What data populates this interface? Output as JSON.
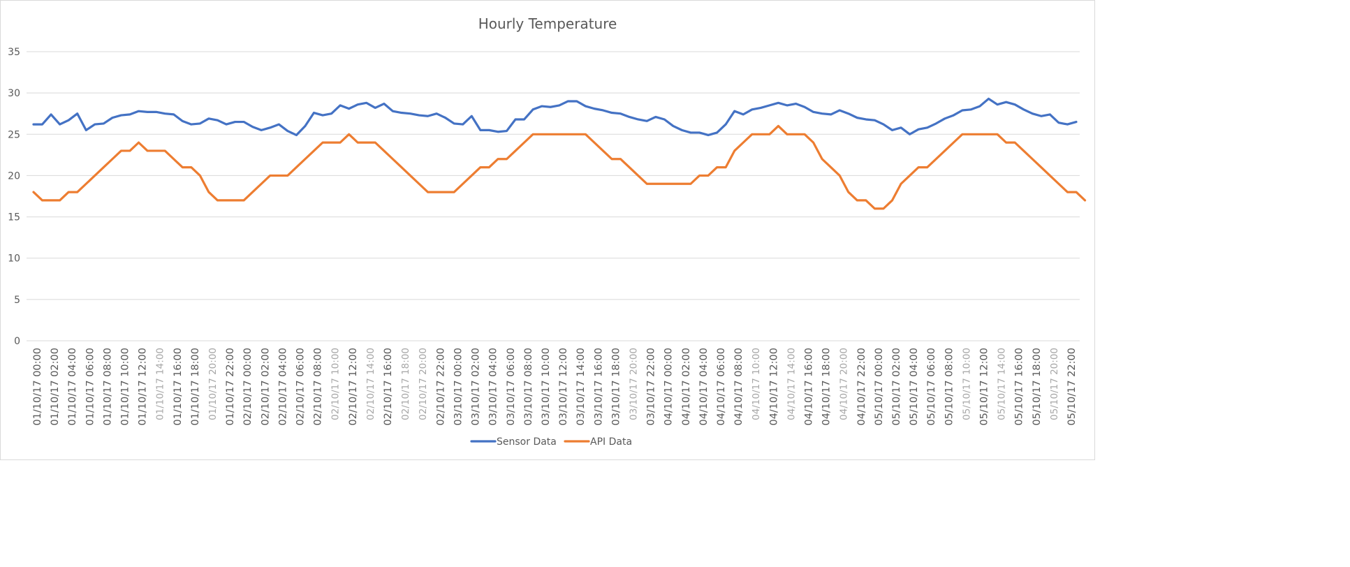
{
  "colors": {
    "sensor": "#4472c4",
    "api": "#ed7d31",
    "grid": "#d9d9d9",
    "text": "#595959"
  },
  "chart_data": {
    "type": "line",
    "title": "Hourly Temperature",
    "xlabel": "",
    "ylabel": "",
    "ylim": [
      0,
      35
    ],
    "yticks": [
      0,
      5,
      10,
      15,
      20,
      25,
      30,
      35
    ],
    "grid": true,
    "legend_position": "bottom",
    "x_tick_labels": [
      "01/10/17 00:00",
      "01/10/17 02:00",
      "01/10/17 04:00",
      "01/10/17 06:00",
      "01/10/17 08:00",
      "01/10/17 10:00",
      "01/10/17 12:00",
      "01/10/17 14:00",
      "01/10/17 16:00",
      "01/10/17 18:00",
      "01/10/17 20:00",
      "01/10/17 22:00",
      "02/10/17 00:00",
      "02/10/17 02:00",
      "02/10/17 04:00",
      "02/10/17 06:00",
      "02/10/17 08:00",
      "02/10/17 10:00",
      "02/10/17 12:00",
      "02/10/17 14:00",
      "02/10/17 16:00",
      "02/10/17 18:00",
      "02/10/17 20:00",
      "02/10/17 22:00",
      "03/10/17 00:00",
      "03/10/17 02:00",
      "03/10/17 04:00",
      "03/10/17 06:00",
      "03/10/17 08:00",
      "03/10/17 10:00",
      "03/10/17 12:00",
      "03/10/17 14:00",
      "03/10/17 16:00",
      "03/10/17 18:00",
      "03/10/17 20:00",
      "03/10/17 22:00",
      "04/10/17 00:00",
      "04/10/17 02:00",
      "04/10/17 04:00",
      "04/10/17 06:00",
      "04/10/17 08:00",
      "04/10/17 10:00",
      "04/10/17 12:00",
      "04/10/17 14:00",
      "04/10/17 16:00",
      "04/10/17 18:00",
      "04/10/17 20:00",
      "04/10/17 22:00",
      "05/10/17 00:00",
      "05/10/17 02:00",
      "05/10/17 04:00",
      "05/10/17 06:00",
      "05/10/17 08:00",
      "05/10/17 10:00",
      "05/10/17 12:00",
      "05/10/17 14:00",
      "05/10/17 16:00",
      "05/10/17 18:00",
      "05/10/17 20:00",
      "05/10/17 22:00"
    ],
    "x_tick_light": [
      7,
      10,
      17,
      19,
      21,
      22,
      34,
      41,
      43,
      46,
      53,
      55,
      58
    ],
    "series": [
      {
        "name": "Sensor Data",
        "color": "#4472c4",
        "values": [
          26.2,
          26.2,
          27.4,
          26.2,
          26.7,
          27.5,
          25.5,
          26.2,
          26.3,
          27.0,
          27.3,
          27.4,
          27.8,
          27.7,
          27.7,
          27.5,
          27.4,
          26.6,
          26.2,
          26.3,
          26.9,
          26.7,
          26.2,
          26.5,
          26.5,
          25.9,
          25.5,
          25.8,
          26.2,
          25.4,
          24.9,
          26.0,
          27.6,
          27.3,
          27.5,
          28.5,
          28.1,
          28.6,
          28.8,
          28.2,
          28.7,
          27.8,
          27.6,
          27.5,
          27.3,
          27.2,
          27.5,
          27.0,
          26.3,
          26.2,
          27.2,
          25.5,
          25.5,
          25.3,
          25.4,
          26.8,
          26.8,
          28.0,
          28.4,
          28.3,
          28.5,
          29.0,
          29.0,
          28.4,
          28.1,
          27.9,
          27.6,
          27.5,
          27.1,
          26.8,
          26.6,
          27.1,
          26.8,
          26.0,
          25.5,
          25.2,
          25.2,
          24.9,
          25.2,
          26.2,
          27.8,
          27.4,
          28.0,
          28.2,
          28.5,
          28.8,
          28.5,
          28.7,
          28.3,
          27.7,
          27.5,
          27.4,
          27.9,
          27.5,
          27.0,
          26.8,
          26.7,
          26.2,
          25.5,
          25.8,
          25.0,
          25.6,
          25.8,
          26.3,
          26.9,
          27.3,
          27.9,
          28.0,
          28.4,
          29.3,
          28.6,
          28.9,
          28.6,
          28.0,
          27.5,
          27.2,
          27.4,
          26.4,
          26.2,
          26.5
        ]
      },
      {
        "name": "API Data",
        "color": "#ed7d31",
        "values": [
          18,
          17,
          17,
          17,
          18,
          18,
          19,
          20,
          21,
          22,
          23,
          23,
          24,
          23,
          23,
          23,
          22,
          21,
          21,
          20,
          18,
          17,
          17,
          17,
          17,
          18,
          19,
          20,
          20,
          20,
          21,
          22,
          23,
          24,
          24,
          24,
          25,
          24,
          24,
          24,
          23,
          22,
          21,
          20,
          19,
          18,
          18,
          18,
          18,
          19,
          20,
          21,
          21,
          22,
          22,
          23,
          24,
          25,
          25,
          25,
          25,
          25,
          25,
          25,
          24,
          23,
          22,
          22,
          21,
          20,
          19,
          19,
          19,
          19,
          19,
          19,
          20,
          20,
          21,
          21,
          23,
          24,
          25,
          25,
          25,
          26,
          25,
          25,
          25,
          24,
          22,
          21,
          20,
          18,
          17,
          17,
          16,
          16,
          17,
          19,
          20,
          21,
          21,
          22,
          23,
          24,
          25,
          25,
          25,
          25,
          25,
          24,
          24,
          23,
          22,
          21,
          20,
          19,
          18,
          18,
          17
        ]
      }
    ]
  }
}
